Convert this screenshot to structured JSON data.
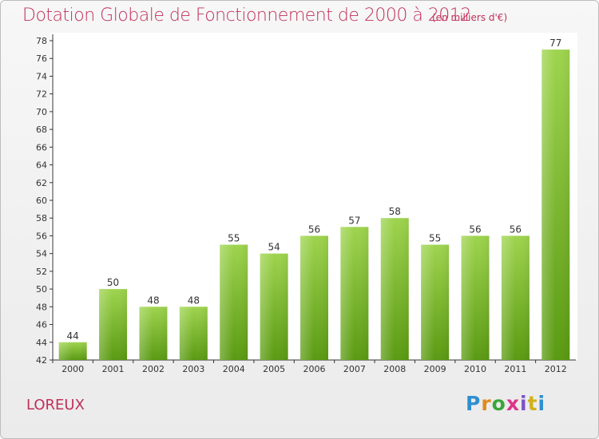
{
  "header": {
    "title": "Dotation Globale de Fonctionnement de 2000 à 2012",
    "subtitle": "(en milliers d'€)"
  },
  "footer": {
    "commune": "LOREUX",
    "logo_text": "Proxiti",
    "logo_colors": [
      "#2e8fd0",
      "#e08a1e",
      "#3aa63a",
      "#e0338a",
      "#7d53c6",
      "#d0b020",
      "#2e8fd0"
    ]
  },
  "chart_data": {
    "type": "bar",
    "categories": [
      "2000",
      "2001",
      "2002",
      "2003",
      "2004",
      "2005",
      "2006",
      "2007",
      "2008",
      "2009",
      "2010",
      "2011",
      "2012"
    ],
    "values": [
      44,
      50,
      48,
      48,
      55,
      54,
      56,
      57,
      58,
      55,
      56,
      56,
      77
    ],
    "title": "Dotation Globale de Fonctionnement de 2000 à 2012",
    "subtitle": "(en milliers d'€)",
    "ylim": [
      42,
      78
    ],
    "yticks": [
      42,
      44,
      46,
      48,
      50,
      52,
      54,
      56,
      58,
      60,
      62,
      64,
      66,
      68,
      70,
      72,
      74,
      76,
      78
    ],
    "grid": false,
    "bar_color_top": "#9ed44e",
    "bar_color_bottom": "#5a9a12"
  }
}
